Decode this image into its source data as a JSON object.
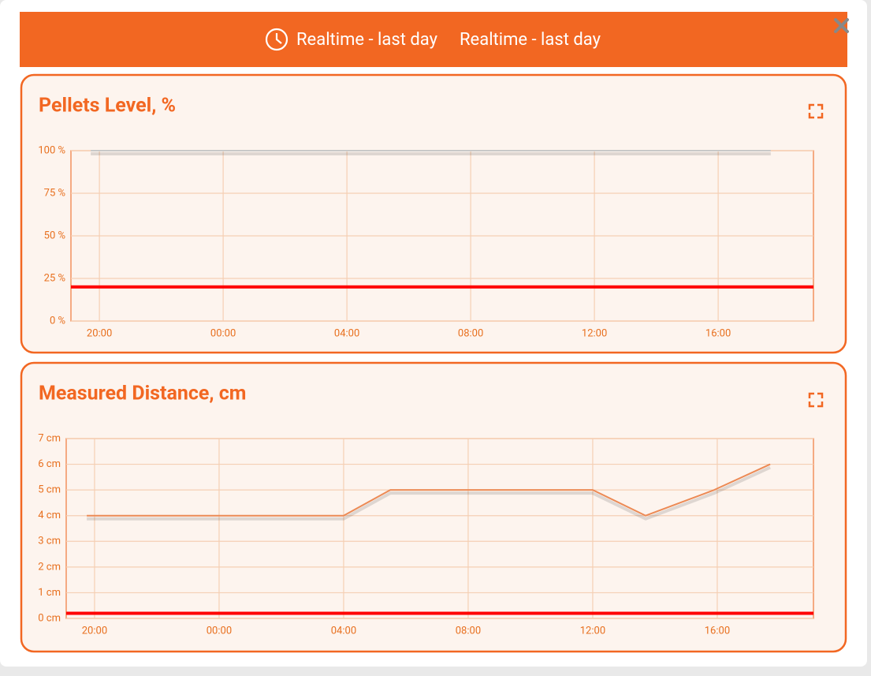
{
  "header": {
    "labels": [
      "Realtime - last day",
      "Realtime - last day"
    ]
  },
  "chart_data": [
    {
      "type": "line",
      "title": "Pellets Level, %",
      "xlim": [
        19.08,
        43.08
      ],
      "xticks": [
        {
          "value": 20,
          "label": "20:00"
        },
        {
          "value": 24,
          "label": "00:00"
        },
        {
          "value": 28,
          "label": "04:00"
        },
        {
          "value": 32,
          "label": "08:00"
        },
        {
          "value": 36,
          "label": "12:00"
        },
        {
          "value": 40,
          "label": "16:00"
        }
      ],
      "ylim": [
        0,
        100
      ],
      "yticks": [
        {
          "value": 0,
          "label": "0 %"
        },
        {
          "value": 25,
          "label": "25 %"
        },
        {
          "value": 50,
          "label": "50 %"
        },
        {
          "value": 75,
          "label": "75 %"
        },
        {
          "value": 100,
          "label": "100 %"
        }
      ],
      "grid": true,
      "series": [
        {
          "color": "#c8c8c8",
          "x": [
            19.72,
            41.7
          ],
          "values": [
            100,
            100
          ]
        }
      ],
      "thresholds": [
        {
          "value": 20,
          "color": "#ff0000"
        }
      ]
    },
    {
      "type": "line",
      "title": "Measured Distance, cm",
      "xlim": [
        19.09,
        43.09
      ],
      "xticks": [
        {
          "value": 20,
          "label": "20:00"
        },
        {
          "value": 24,
          "label": "00:00"
        },
        {
          "value": 28,
          "label": "04:00"
        },
        {
          "value": 32,
          "label": "08:00"
        },
        {
          "value": 36,
          "label": "12:00"
        },
        {
          "value": 40,
          "label": "16:00"
        }
      ],
      "ylim": [
        0,
        7
      ],
      "yticks": [
        {
          "value": 0,
          "label": "0 cm"
        },
        {
          "value": 1,
          "label": "1 cm"
        },
        {
          "value": 2,
          "label": "2 cm"
        },
        {
          "value": 3,
          "label": "3 cm"
        },
        {
          "value": 4,
          "label": "4 cm"
        },
        {
          "value": 5,
          "label": "5 cm"
        },
        {
          "value": 6,
          "label": "6 cm"
        },
        {
          "value": 7,
          "label": "7 cm"
        }
      ],
      "grid": true,
      "series": [
        {
          "color": "#ec8a55",
          "x": [
            19.75,
            28,
            29.5,
            36,
            37.7,
            39.9,
            41.7
          ],
          "values": [
            4,
            4,
            5,
            5,
            4,
            5,
            6
          ]
        }
      ],
      "thresholds": [
        {
          "value": 0.2,
          "color": "#ff0000"
        }
      ]
    }
  ]
}
